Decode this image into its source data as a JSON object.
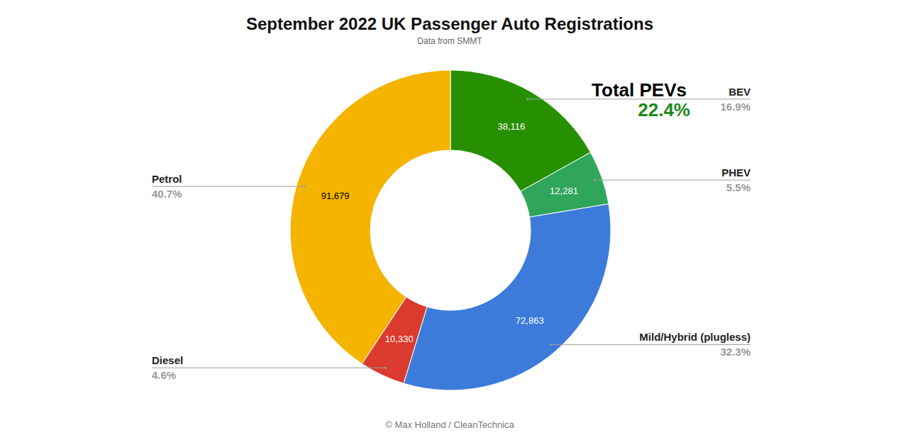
{
  "chart_data": {
    "type": "pie",
    "title": "September 2022 UK Passenger Auto Registrations",
    "subtitle": "Data from SMMT",
    "categories": [
      "BEV",
      "PHEV",
      "Mild/Hybrid (plugless)",
      "Diesel",
      "Petrol"
    ],
    "values": [
      38116,
      12281,
      72863,
      10330,
      91679
    ],
    "value_labels": [
      "38,116",
      "12,281",
      "72,863",
      "10,330",
      "91,679"
    ],
    "shares": [
      16.9,
      5.5,
      32.3,
      4.6,
      40.7
    ],
    "share_labels": [
      "16.9%",
      "5.5%",
      "32.3%",
      "4.6%",
      "40.7%"
    ],
    "colors": [
      "#279000",
      "#2fa65a",
      "#3c7bd9",
      "#db3a2e",
      "#f4b400"
    ],
    "data_labels": true,
    "annotations": [
      {
        "text": "Total PEVs",
        "label": "22.4%",
        "value": 22.4
      }
    ],
    "credit": "© Max Holland / CleanTechnica"
  }
}
